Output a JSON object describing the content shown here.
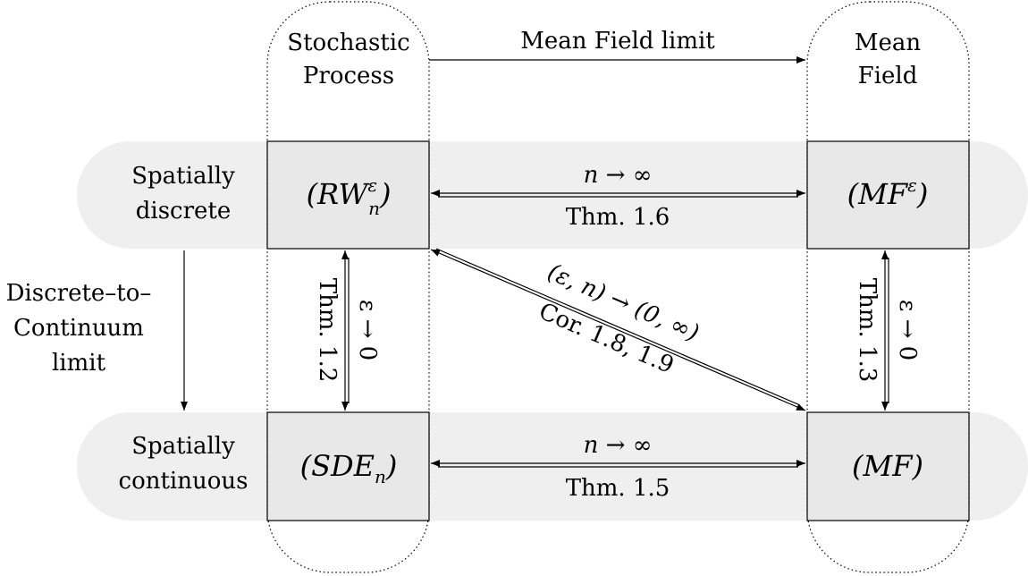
{
  "columns": {
    "stochastic": [
      "Stochastic",
      "Process"
    ],
    "meanfield": [
      "Mean",
      "Field"
    ]
  },
  "rows": {
    "discrete": [
      "Spatially",
      "discrete"
    ],
    "continuous": [
      "Spatially",
      "continuous"
    ]
  },
  "top_arrow_label": "Mean Field limit",
  "left_arrow_label": [
    "Discrete–to–",
    "Continuum",
    "limit"
  ],
  "nodes": {
    "rw": "(RW",
    "rw_sup": "ε",
    "rw_sub": "n",
    "mfe": "(MF",
    "mfe_sup": "ε",
    "sde": "(SDE",
    "sde_sub": "n",
    "mf": "(MF)"
  },
  "edges": {
    "top": {
      "above": "n → ∞",
      "below": "Thm. 1.6"
    },
    "bottom": {
      "above": "n → ∞",
      "below": "Thm. 1.5"
    },
    "left_vertical": {
      "thm": "Thm. 1.2",
      "cond": "ε → 0"
    },
    "right_vertical": {
      "thm": "Thm. 1.3",
      "cond": "ε → 0"
    },
    "diagonal": {
      "above": "(ε, n) → (0, ∞)",
      "below": "Cor. 1.8, 1.9"
    }
  },
  "colors": {
    "band": "#efefef",
    "box": "#e8e8e8",
    "stroke": "#000000"
  }
}
